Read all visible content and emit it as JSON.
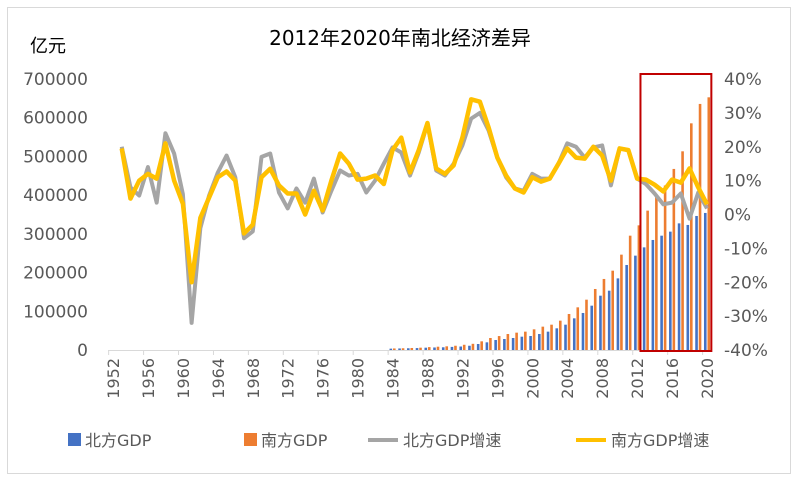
{
  "chart_data": {
    "type": "bar+line",
    "title": "2012年2020年南北经济差异",
    "ylabel": "亿元",
    "ylim": [
      0,
      700000
    ],
    "y_ticks": [
      "0",
      "100000",
      "200000",
      "300000",
      "400000",
      "500000",
      "600000",
      "700000"
    ],
    "y2lim": [
      -0.4,
      0.4
    ],
    "y2_ticks": [
      "-40%",
      "-30%",
      "-20%",
      "-10%",
      "0%",
      "10%",
      "20%",
      "30%",
      "40%"
    ],
    "x_range": [
      1952,
      2020
    ],
    "x_ticks": [
      "1952",
      "1956",
      "1960",
      "1964",
      "1968",
      "1972",
      "1976",
      "1980",
      "1984",
      "1988",
      "1992",
      "1996",
      "2000",
      "2004",
      "2008",
      "2012",
      "2016",
      "2020"
    ],
    "grid": false,
    "legend_position": "bottom",
    "highlight_box": {
      "from": 2013,
      "to": 2020,
      "color": "#C00000"
    },
    "bar_years": [
      1984,
      1985,
      1986,
      1987,
      1988,
      1989,
      1990,
      1991,
      1992,
      1993,
      1994,
      1995,
      1996,
      1997,
      1998,
      1999,
      2000,
      2001,
      2002,
      2003,
      2004,
      2005,
      2006,
      2007,
      2008,
      2009,
      2010,
      2011,
      2012,
      2013,
      2014,
      2015,
      2016,
      2017,
      2018,
      2019,
      2020
    ],
    "line_years": [
      1953,
      1954,
      1955,
      1956,
      1957,
      1958,
      1959,
      1960,
      1961,
      1962,
      1963,
      1964,
      1965,
      1966,
      1967,
      1968,
      1969,
      1970,
      1971,
      1972,
      1973,
      1974,
      1975,
      1976,
      1977,
      1978,
      1979,
      1980,
      1981,
      1982,
      1983,
      1984,
      1985,
      1986,
      1987,
      1988,
      1989,
      1990,
      1991,
      1992,
      1993,
      1994,
      1995,
      1996,
      1997,
      1998,
      1999,
      2000,
      2001,
      2002,
      2003,
      2004,
      2005,
      2006,
      2007,
      2008,
      2009,
      2010,
      2011,
      2012,
      2013,
      2014,
      2015,
      2016,
      2017,
      2018,
      2019,
      2020
    ],
    "series": [
      {
        "name": "北方GDP",
        "type": "bar",
        "axis": "left",
        "color": "#4472C4",
        "values": [
          3500,
          4000,
          4500,
          5000,
          6000,
          6500,
          7000,
          8000,
          9000,
          11000,
          15500,
          19800,
          25800,
          28400,
          31000,
          34400,
          36200,
          41300,
          47400,
          56000,
          65400,
          81800,
          95600,
          114500,
          140300,
          153200,
          185000,
          219600,
          243700,
          265100,
          284200,
          295300,
          305700,
          327100,
          323000,
          346200,
          354000
        ]
      },
      {
        "name": "南方GDP",
        "type": "bar",
        "axis": "left",
        "color": "#ED7D31",
        "values": [
          4000,
          4500,
          5200,
          6000,
          7500,
          8500,
          9500,
          11000,
          13500,
          16000,
          22400,
          31000,
          36000,
          41300,
          44800,
          47400,
          53400,
          60300,
          65400,
          75800,
          93000,
          110200,
          130000,
          157600,
          183500,
          204900,
          246300,
          295300,
          322000,
          360000,
          398700,
          425000,
          467700,
          513200,
          585500,
          635600,
          652700
        ]
      },
      {
        "name": "北方GDP增速",
        "type": "line",
        "axis": "right",
        "color": "#A5A5A5",
        "values": [
          0.2,
          0.08,
          0.056,
          0.14,
          0.035,
          0.24,
          0.18,
          0.06,
          -0.32,
          -0.04,
          0.056,
          0.124,
          0.174,
          0.11,
          -0.07,
          -0.05,
          0.17,
          0.18,
          0.065,
          0.018,
          0.077,
          0.035,
          0.106,
          0.006,
          0.07,
          0.13,
          0.115,
          0.12,
          0.065,
          0.1,
          0.15,
          0.198,
          0.183,
          0.115,
          0.183,
          0.268,
          0.13,
          0.115,
          0.15,
          0.204,
          0.283,
          0.3,
          0.248,
          0.168,
          0.11,
          0.077,
          0.07,
          0.12,
          0.106,
          0.106,
          0.15,
          0.21,
          0.2,
          0.168,
          0.198,
          0.204,
          0.086,
          0.195,
          0.19,
          0.106,
          0.09,
          0.062,
          0.03,
          0.035,
          0.062,
          -0.012,
          0.065,
          0.018
        ]
      },
      {
        "name": "南方GDP增速",
        "type": "line",
        "axis": "right",
        "color": "#FFC000",
        "values": [
          0.195,
          0.047,
          0.1,
          0.12,
          0.106,
          0.21,
          0.1,
          0.032,
          -0.2,
          -0.01,
          0.05,
          0.11,
          0.127,
          0.1,
          -0.056,
          -0.03,
          0.11,
          0.135,
          0.086,
          0.062,
          0.062,
          0.0,
          0.07,
          0.012,
          0.1,
          0.18,
          0.15,
          0.103,
          0.106,
          0.115,
          0.09,
          0.19,
          0.227,
          0.124,
          0.19,
          0.27,
          0.136,
          0.12,
          0.145,
          0.227,
          0.34,
          0.333,
          0.257,
          0.168,
          0.115,
          0.077,
          0.065,
          0.11,
          0.097,
          0.106,
          0.15,
          0.195,
          0.168,
          0.165,
          0.2,
          0.174,
          0.1,
          0.195,
          0.19,
          0.106,
          0.103,
          0.088,
          0.068,
          0.103,
          0.094,
          0.136,
          0.08,
          0.03
        ]
      }
    ]
  }
}
